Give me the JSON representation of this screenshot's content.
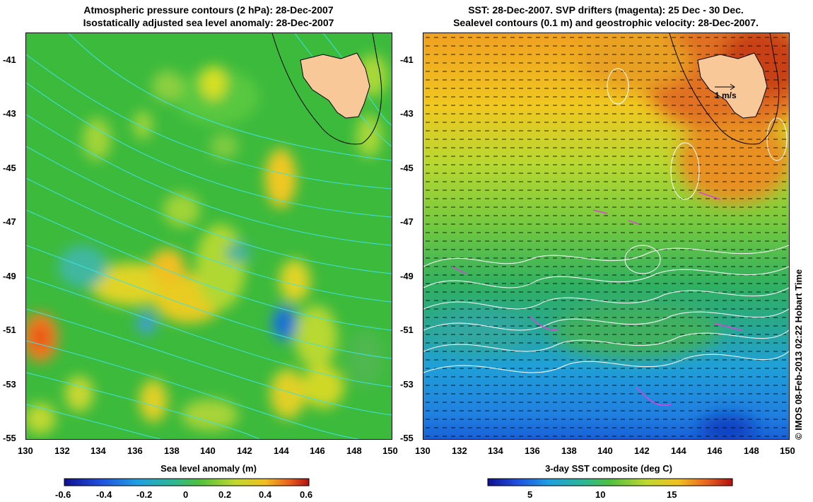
{
  "left_panel": {
    "title_line1": "Atmospheric pressure contours (2 hPa): 28-Dec-2007",
    "title_line2": "Isostatically adjusted sea level anomaly: 28-Dec-2007",
    "colorbar_label": "Sea level anomaly (m)",
    "colorbar_ticks": [
      "-0.6",
      "-0.4",
      "-0.2",
      "0",
      "0.2",
      "0.4",
      "0.6"
    ],
    "colors": {
      "high": "#f0c020",
      "mid": "#50c040",
      "low": "#2090e0",
      "contour": "#40e0e0"
    }
  },
  "right_panel": {
    "title_line1": "SST: 28-Dec-2007. SVP drifters (magenta): 25 Dec - 30 Dec.",
    "title_line2": "Sealevel contours (0.1 m) and geostrophic velocity: 28-Dec-2007.",
    "colorbar_label": "3-day SST composite (deg C)",
    "colorbar_ticks": [
      "5",
      "10",
      "15"
    ],
    "scale_label": "1 m/s",
    "colors": {
      "warm": "#e07020",
      "mid": "#60c040",
      "cold": "#1070e0",
      "drifter": "#e040e0"
    }
  },
  "axes": {
    "x_ticks": [
      "130",
      "132",
      "134",
      "136",
      "138",
      "140",
      "142",
      "144",
      "146",
      "148",
      "150"
    ],
    "y_ticks": [
      "-41",
      "-43",
      "-45",
      "-47",
      "-49",
      "-51",
      "-53",
      "-55"
    ]
  },
  "land": {
    "name_icon": "tasmania-landmass",
    "color": "#f8c898"
  },
  "credit": "© IMOS 08-Feb-2013 02:22 Hobart Time"
}
